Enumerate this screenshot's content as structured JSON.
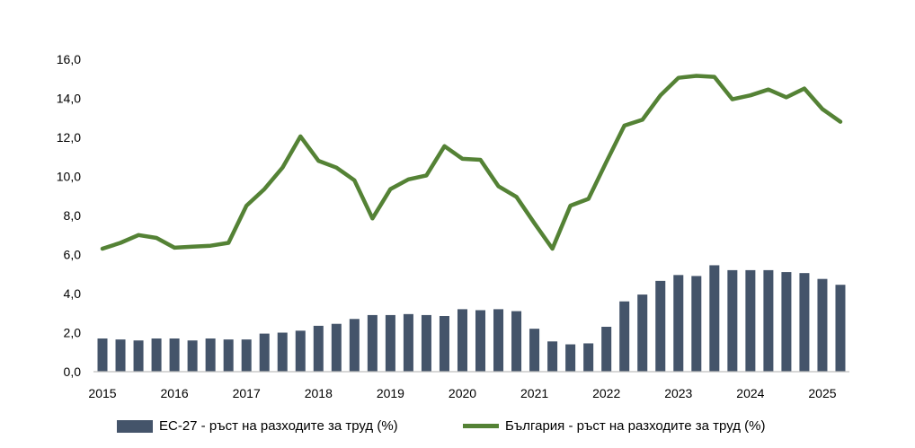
{
  "colors": {
    "bars": "#44546A",
    "line": "#548235",
    "axis": "#BFBFBF"
  },
  "chart_data": {
    "type": "bar+line",
    "title": "",
    "xlabel": "",
    "ylabel": "",
    "ylim": [
      0,
      16
    ],
    "yticks": [
      "0,0",
      "2,0",
      "4,0",
      "6,0",
      "8,0",
      "10,0",
      "12,0",
      "14,0",
      "16,0"
    ],
    "year_labels": [
      "2015",
      "2016",
      "2017",
      "2018",
      "2019",
      "2020",
      "2021",
      "2022",
      "2023",
      "2024",
      "2025"
    ],
    "grid": false,
    "legend_position": "bottom",
    "series": [
      {
        "name": "ЕС-27 -  ръст на разходите за труд (%)",
        "type": "bar",
        "values": [
          1.7,
          1.65,
          1.6,
          1.7,
          1.7,
          1.6,
          1.7,
          1.65,
          1.65,
          1.95,
          2.0,
          2.1,
          2.35,
          2.45,
          2.7,
          2.9,
          2.9,
          2.95,
          2.9,
          2.85,
          3.2,
          3.15,
          3.2,
          3.1,
          2.2,
          1.55,
          1.4,
          1.45,
          2.3,
          3.6,
          3.95,
          4.65,
          4.95,
          4.9,
          5.45,
          5.2,
          5.2,
          5.2,
          5.1,
          5.05,
          4.75,
          4.45
        ]
      },
      {
        "name": "България - ръст на разходите за труд (%)",
        "type": "line",
        "values": [
          6.3,
          6.6,
          7.0,
          6.85,
          6.35,
          6.4,
          6.45,
          6.6,
          8.5,
          9.35,
          10.45,
          12.05,
          10.8,
          10.45,
          9.8,
          7.85,
          9.35,
          9.85,
          10.05,
          11.55,
          10.9,
          10.85,
          9.5,
          8.95,
          7.6,
          6.3,
          8.5,
          8.85,
          10.75,
          12.6,
          12.9,
          14.15,
          15.05,
          15.15,
          15.1,
          13.95,
          14.15,
          14.45,
          14.05,
          14.5,
          13.45,
          12.8
        ]
      }
    ]
  }
}
